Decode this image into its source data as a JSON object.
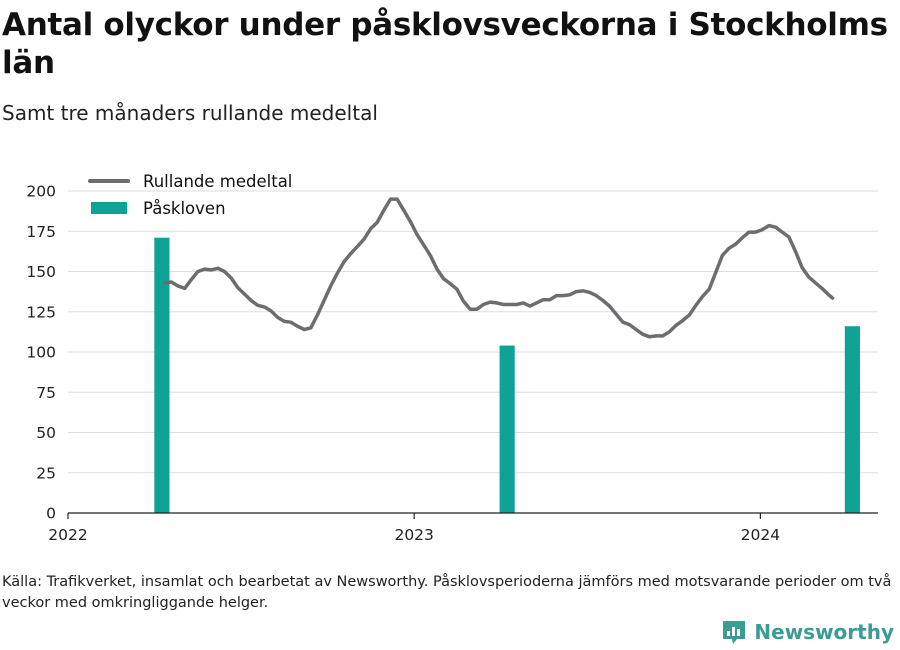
{
  "title": "Antal olyckor under påsklovsveckorna i Stockholms län",
  "subtitle": "Samt tre månaders rullande medeltal",
  "source": "Källa: Trafikverket, insamlat och bearbetat av Newsworthy. Påsklovsperioderna jämförs med motsvarande perioder om två veckor med omkringliggande helger.",
  "brand": {
    "name": "Newsworthy",
    "icon": "newsworthy-logo-icon"
  },
  "colors": {
    "line": "#6d6d71",
    "bar": "#0fa297",
    "grid": "#dddddd",
    "axis": "#222222",
    "brand": "#3a9c92"
  },
  "chart_data": {
    "type": "bar+line",
    "legend": {
      "position": "top-left",
      "entries": [
        "Rullande medeltal",
        "Påskloven"
      ]
    },
    "grid": "horizontal",
    "ylim": [
      0,
      200
    ],
    "yticks": [
      0,
      25,
      50,
      75,
      100,
      125,
      150,
      175,
      200
    ],
    "xlim": [
      "2022-01-01",
      "2024-05-04"
    ],
    "xticks": [
      {
        "label": "2022",
        "date": "2022-01-01"
      },
      {
        "label": "2023",
        "date": "2023-01-01"
      },
      {
        "label": "2024",
        "date": "2024-01-01"
      }
    ],
    "bars": {
      "name": "Påskloven",
      "points": [
        {
          "start": "2022-04-02",
          "end": "2022-04-18",
          "value": 171
        },
        {
          "start": "2023-04-01",
          "end": "2023-04-17",
          "value": 104
        },
        {
          "start": "2024-03-30",
          "end": "2024-04-15",
          "value": 116
        }
      ]
    },
    "line": {
      "name": "Rullande medeltal",
      "points": [
        [
          "2022-04-13",
          143
        ],
        [
          "2022-04-20",
          143.5
        ],
        [
          "2022-04-27",
          141
        ],
        [
          "2022-05-04",
          139.5
        ],
        [
          "2022-05-11",
          145
        ],
        [
          "2022-05-18",
          150
        ],
        [
          "2022-05-25",
          151.5
        ],
        [
          "2022-06-01",
          151
        ],
        [
          "2022-06-08",
          152
        ],
        [
          "2022-06-15",
          150
        ],
        [
          "2022-06-22",
          146
        ],
        [
          "2022-06-29",
          140
        ],
        [
          "2022-07-06",
          136
        ],
        [
          "2022-07-13",
          132
        ],
        [
          "2022-07-20",
          129
        ],
        [
          "2022-07-27",
          128
        ],
        [
          "2022-08-03",
          125.5
        ],
        [
          "2022-08-10",
          121.5
        ],
        [
          "2022-08-17",
          119
        ],
        [
          "2022-08-24",
          118.5
        ],
        [
          "2022-08-31",
          116
        ],
        [
          "2022-09-07",
          114
        ],
        [
          "2022-09-14",
          115
        ],
        [
          "2022-09-21",
          123
        ],
        [
          "2022-09-28",
          132
        ],
        [
          "2022-10-05",
          141
        ],
        [
          "2022-10-12",
          149
        ],
        [
          "2022-10-19",
          156
        ],
        [
          "2022-10-26",
          161
        ],
        [
          "2022-11-02",
          165.5
        ],
        [
          "2022-11-09",
          170
        ],
        [
          "2022-11-16",
          176.5
        ],
        [
          "2022-11-23",
          180.5
        ],
        [
          "2022-11-30",
          188
        ],
        [
          "2022-12-07",
          195
        ],
        [
          "2022-12-14",
          195
        ],
        [
          "2022-12-21",
          188
        ],
        [
          "2022-12-28",
          181
        ],
        [
          "2023-01-04",
          173
        ],
        [
          "2023-01-11",
          166.5
        ],
        [
          "2023-01-18",
          160
        ],
        [
          "2023-01-25",
          151.5
        ],
        [
          "2023-02-01",
          145.5
        ],
        [
          "2023-02-08",
          142.5
        ],
        [
          "2023-02-15",
          139
        ],
        [
          "2023-02-22",
          131.5
        ],
        [
          "2023-03-01",
          126.5
        ],
        [
          "2023-03-08",
          126.5
        ],
        [
          "2023-03-15",
          129.5
        ],
        [
          "2023-03-22",
          131
        ],
        [
          "2023-03-29",
          130.5
        ],
        [
          "2023-04-05",
          129.5
        ],
        [
          "2023-04-12",
          129.5
        ],
        [
          "2023-04-19",
          129.5
        ],
        [
          "2023-04-26",
          130.5
        ],
        [
          "2023-05-03",
          128.5
        ],
        [
          "2023-05-10",
          130.5
        ],
        [
          "2023-05-17",
          132.5
        ],
        [
          "2023-05-24",
          132.5
        ],
        [
          "2023-05-31",
          135
        ],
        [
          "2023-06-07",
          135
        ],
        [
          "2023-06-14",
          135.5
        ],
        [
          "2023-06-21",
          137.5
        ],
        [
          "2023-06-28",
          138
        ],
        [
          "2023-07-05",
          137
        ],
        [
          "2023-07-12",
          135
        ],
        [
          "2023-07-19",
          132
        ],
        [
          "2023-07-26",
          128.5
        ],
        [
          "2023-08-02",
          123.5
        ],
        [
          "2023-08-09",
          118.5
        ],
        [
          "2023-08-16",
          117
        ],
        [
          "2023-08-23",
          114
        ],
        [
          "2023-08-30",
          111
        ],
        [
          "2023-09-06",
          109.5
        ],
        [
          "2023-09-13",
          110
        ],
        [
          "2023-09-20",
          110
        ],
        [
          "2023-09-27",
          112.5
        ],
        [
          "2023-10-04",
          116.5
        ],
        [
          "2023-10-11",
          119.5
        ],
        [
          "2023-10-18",
          123
        ],
        [
          "2023-10-25",
          129
        ],
        [
          "2023-11-01",
          134.5
        ],
        [
          "2023-11-08",
          139
        ],
        [
          "2023-11-15",
          149.5
        ],
        [
          "2023-11-22",
          160
        ],
        [
          "2023-11-29",
          164.5
        ],
        [
          "2023-12-06",
          167
        ],
        [
          "2023-12-13",
          171
        ],
        [
          "2023-12-20",
          174.5
        ],
        [
          "2023-12-27",
          174.5
        ],
        [
          "2024-01-03",
          176
        ],
        [
          "2024-01-10",
          178.5
        ],
        [
          "2024-01-17",
          177.5
        ],
        [
          "2024-01-24",
          174.5
        ],
        [
          "2024-01-31",
          171.5
        ],
        [
          "2024-02-07",
          162.5
        ],
        [
          "2024-02-14",
          152.5
        ],
        [
          "2024-02-21",
          146.5
        ],
        [
          "2024-02-28",
          143
        ],
        [
          "2024-03-06",
          139.5
        ],
        [
          "2024-03-13",
          135.5
        ],
        [
          "2024-03-17",
          133.5
        ]
      ]
    }
  }
}
